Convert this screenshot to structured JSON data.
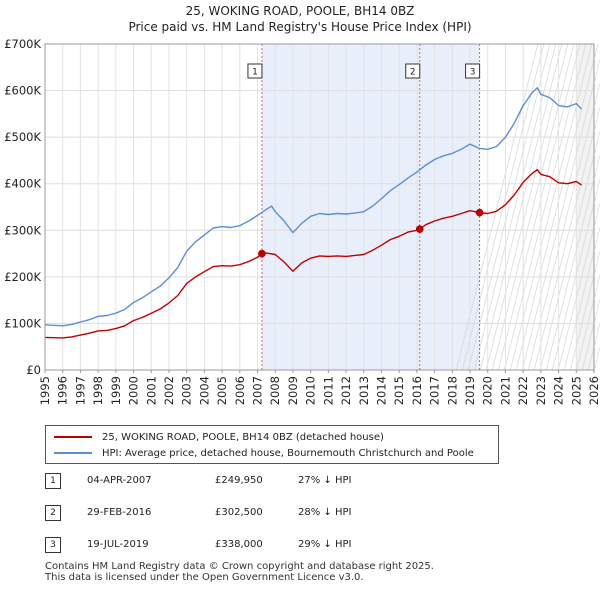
{
  "header": {
    "title": "25, WOKING ROAD, POOLE, BH14 0BZ",
    "subtitle": "Price paid vs. HM Land Registry's House Price Index (HPI)"
  },
  "chart_data": {
    "type": "line",
    "title": "25, WOKING ROAD, POOLE, BH14 0BZ",
    "subtitle": "Price paid vs. HM Land Registry's House Price Index (HPI)",
    "xlim": [
      1995,
      2026
    ],
    "ylim": [
      0,
      700000
    ],
    "x_ticks": [
      "1995",
      "1996",
      "1997",
      "1998",
      "1999",
      "2000",
      "2001",
      "2002",
      "2003",
      "2004",
      "2005",
      "2006",
      "2007",
      "2008",
      "2009",
      "2010",
      "2011",
      "2012",
      "2013",
      "2014",
      "2015",
      "2016",
      "2017",
      "2018",
      "2019",
      "2020",
      "2021",
      "2022",
      "2023",
      "2024",
      "2025",
      "2026"
    ],
    "y_ticks": [
      {
        "value": 0,
        "label": "£0"
      },
      {
        "value": 100000,
        "label": "£100K"
      },
      {
        "value": 200000,
        "label": "£200K"
      },
      {
        "value": 300000,
        "label": "£300K"
      },
      {
        "value": 400000,
        "label": "£400K"
      },
      {
        "value": 500000,
        "label": "£500K"
      },
      {
        "value": 600000,
        "label": "£600K"
      },
      {
        "value": 700000,
        "label": "£700K"
      }
    ],
    "grid": true,
    "colors": {
      "hpi": "#5b8fd0",
      "property": "#c00000",
      "shade": "#e9effa",
      "marker_line": "#e06060"
    },
    "shaded_region": {
      "x_start": 2007.25,
      "x_end": 2019.54
    },
    "future_region_start": 2025.0,
    "series": [
      {
        "name": "HPI: Average price, detached house, Bournemouth Christchurch and Poole",
        "key": "hpi",
        "points": [
          [
            1995.0,
            97000
          ],
          [
            1996.0,
            95000
          ],
          [
            1996.5,
            98000
          ],
          [
            1997.0,
            103000
          ],
          [
            1997.5,
            108000
          ],
          [
            1998.0,
            115000
          ],
          [
            1998.5,
            117000
          ],
          [
            1999.0,
            122000
          ],
          [
            1999.5,
            130000
          ],
          [
            2000.0,
            145000
          ],
          [
            2000.5,
            155000
          ],
          [
            2001.0,
            168000
          ],
          [
            2001.5,
            180000
          ],
          [
            2002.0,
            198000
          ],
          [
            2002.5,
            220000
          ],
          [
            2003.0,
            255000
          ],
          [
            2003.5,
            275000
          ],
          [
            2004.0,
            290000
          ],
          [
            2004.5,
            305000
          ],
          [
            2005.0,
            308000
          ],
          [
            2005.5,
            306000
          ],
          [
            2006.0,
            310000
          ],
          [
            2006.5,
            320000
          ],
          [
            2007.0,
            332000
          ],
          [
            2007.5,
            345000
          ],
          [
            2007.8,
            352000
          ],
          [
            2008.0,
            340000
          ],
          [
            2008.5,
            320000
          ],
          [
            2009.0,
            295000
          ],
          [
            2009.5,
            315000
          ],
          [
            2010.0,
            330000
          ],
          [
            2010.5,
            336000
          ],
          [
            2011.0,
            334000
          ],
          [
            2011.5,
            336000
          ],
          [
            2012.0,
            335000
          ],
          [
            2012.5,
            337000
          ],
          [
            2013.0,
            340000
          ],
          [
            2013.5,
            352000
          ],
          [
            2014.0,
            368000
          ],
          [
            2014.5,
            385000
          ],
          [
            2015.0,
            398000
          ],
          [
            2015.5,
            412000
          ],
          [
            2016.0,
            425000
          ],
          [
            2016.5,
            440000
          ],
          [
            2017.0,
            452000
          ],
          [
            2017.5,
            460000
          ],
          [
            2018.0,
            465000
          ],
          [
            2018.5,
            474000
          ],
          [
            2019.0,
            485000
          ],
          [
            2019.5,
            476000
          ],
          [
            2020.0,
            474000
          ],
          [
            2020.5,
            480000
          ],
          [
            2021.0,
            500000
          ],
          [
            2021.5,
            530000
          ],
          [
            2022.0,
            568000
          ],
          [
            2022.5,
            595000
          ],
          [
            2022.8,
            606000
          ],
          [
            2023.0,
            592000
          ],
          [
            2023.5,
            585000
          ],
          [
            2024.0,
            568000
          ],
          [
            2024.5,
            565000
          ],
          [
            2025.0,
            572000
          ],
          [
            2025.3,
            560000
          ]
        ]
      },
      {
        "name": "25, WOKING ROAD, POOLE, BH14 0BZ (detached house)",
        "key": "property",
        "points": [
          [
            1995.0,
            70000
          ],
          [
            1996.0,
            69000
          ],
          [
            1996.5,
            71000
          ],
          [
            1997.0,
            75000
          ],
          [
            1997.5,
            79000
          ],
          [
            1998.0,
            84000
          ],
          [
            1998.5,
            85000
          ],
          [
            1999.0,
            89000
          ],
          [
            1999.5,
            95000
          ],
          [
            2000.0,
            106000
          ],
          [
            2000.5,
            113000
          ],
          [
            2001.0,
            122000
          ],
          [
            2001.5,
            131000
          ],
          [
            2002.0,
            144000
          ],
          [
            2002.5,
            160000
          ],
          [
            2003.0,
            186000
          ],
          [
            2003.5,
            200000
          ],
          [
            2004.0,
            211000
          ],
          [
            2004.5,
            222000
          ],
          [
            2005.0,
            224000
          ],
          [
            2005.5,
            223000
          ],
          [
            2006.0,
            226000
          ],
          [
            2006.5,
            233000
          ],
          [
            2007.0,
            242000
          ],
          [
            2007.25,
            249950
          ],
          [
            2007.5,
            251000
          ],
          [
            2008.0,
            248000
          ],
          [
            2008.5,
            232000
          ],
          [
            2009.0,
            212000
          ],
          [
            2009.5,
            230000
          ],
          [
            2010.0,
            240000
          ],
          [
            2010.5,
            245000
          ],
          [
            2011.0,
            244000
          ],
          [
            2011.5,
            245000
          ],
          [
            2012.0,
            244000
          ],
          [
            2012.5,
            246000
          ],
          [
            2013.0,
            248000
          ],
          [
            2013.5,
            257000
          ],
          [
            2014.0,
            268000
          ],
          [
            2014.5,
            280000
          ],
          [
            2015.0,
            287000
          ],
          [
            2015.5,
            296000
          ],
          [
            2016.0,
            300000
          ],
          [
            2016.16,
            302500
          ],
          [
            2016.5,
            312000
          ],
          [
            2017.0,
            320000
          ],
          [
            2017.5,
            326000
          ],
          [
            2018.0,
            330000
          ],
          [
            2018.5,
            336000
          ],
          [
            2019.0,
            342000
          ],
          [
            2019.54,
            338000
          ],
          [
            2020.0,
            336000
          ],
          [
            2020.5,
            341000
          ],
          [
            2021.0,
            355000
          ],
          [
            2021.5,
            376000
          ],
          [
            2022.0,
            403000
          ],
          [
            2022.5,
            422000
          ],
          [
            2022.8,
            430000
          ],
          [
            2023.0,
            420000
          ],
          [
            2023.5,
            415000
          ],
          [
            2024.0,
            402000
          ],
          [
            2024.5,
            400000
          ],
          [
            2025.0,
            405000
          ],
          [
            2025.3,
            397000
          ]
        ]
      }
    ],
    "sales": [
      {
        "id": "1",
        "x": 2007.25,
        "price": 249950
      },
      {
        "id": "2",
        "x": 2016.16,
        "price": 302500
      },
      {
        "id": "3",
        "x": 2019.54,
        "price": 338000
      }
    ]
  },
  "legend": {
    "property_label": "25, WOKING ROAD, POOLE, BH14 0BZ (detached house)",
    "hpi_label": "HPI: Average price, detached house, Bournemouth Christchurch and Poole"
  },
  "sales_table": [
    {
      "num": "1",
      "date": "04-APR-2007",
      "price": "£249,950",
      "delta": "27% ↓ HPI"
    },
    {
      "num": "2",
      "date": "29-FEB-2016",
      "price": "£302,500",
      "delta": "28% ↓ HPI"
    },
    {
      "num": "3",
      "date": "19-JUL-2019",
      "price": "£338,000",
      "delta": "29% ↓ HPI"
    }
  ],
  "footer": {
    "line1": "Contains HM Land Registry data © Crown copyright and database right 2025.",
    "line2": "This data is licensed under the Open Government Licence v3.0."
  }
}
